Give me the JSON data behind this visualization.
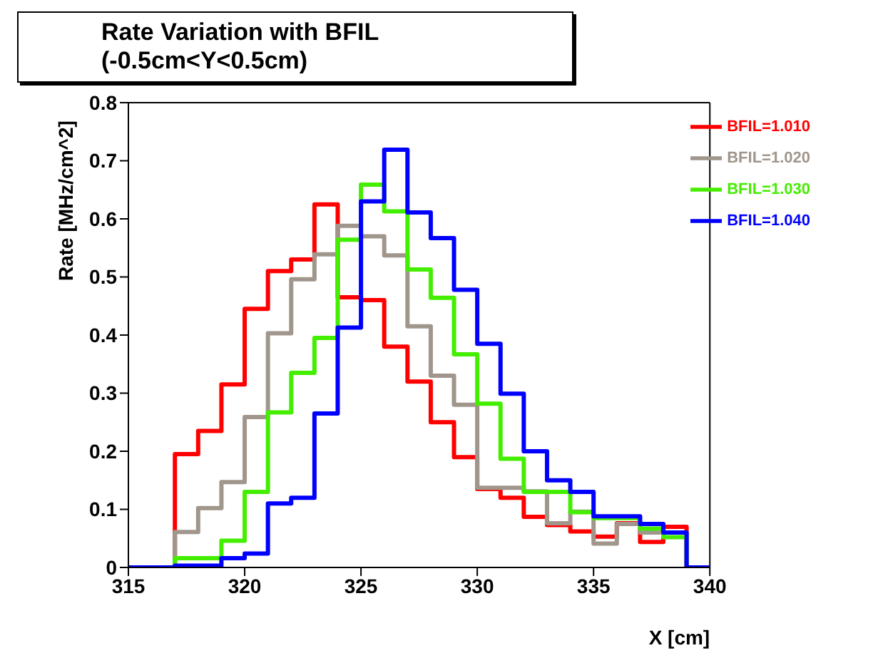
{
  "chart_data": {
    "type": "histogram",
    "title": "Rate Variation with BFIL (-0.5cm<Y<0.5cm)",
    "xlabel": "X [cm]",
    "ylabel": "Rate [MHz/cm^2]",
    "bins": [
      315,
      316,
      317,
      318,
      319,
      320,
      321,
      322,
      323,
      324,
      325,
      326,
      327,
      328,
      329,
      330,
      331,
      332,
      333,
      334,
      335,
      336,
      337,
      338,
      339,
      340
    ],
    "series": [
      {
        "name": "BFIL=1.010",
        "color": "#ff0000",
        "values": [
          0,
          0,
          0.195,
          0.235,
          0.315,
          0.445,
          0.51,
          0.53,
          0.625,
          0.465,
          0.46,
          0.38,
          0.32,
          0.25,
          0.19,
          0.135,
          0.12,
          0.087,
          0.073,
          0.062,
          0.053,
          0.076,
          0.044,
          0.07,
          0
        ]
      },
      {
        "name": "BFIL=1.020",
        "color": "#a0968c",
        "values": [
          0,
          0,
          0.061,
          0.102,
          0.147,
          0.259,
          0.403,
          0.496,
          0.539,
          0.588,
          0.57,
          0.537,
          0.415,
          0.33,
          0.28,
          0.137,
          0.137,
          0.131,
          0.076,
          0.096,
          0.041,
          0.075,
          0.06,
          0.06,
          0
        ]
      },
      {
        "name": "BFIL=1.030",
        "color": "#44ee00",
        "values": [
          0,
          0,
          0.016,
          0.016,
          0.046,
          0.13,
          0.267,
          0.335,
          0.395,
          0.564,
          0.659,
          0.613,
          0.513,
          0.464,
          0.367,
          0.282,
          0.187,
          0.13,
          0.13,
          0.095,
          0.085,
          0.085,
          0.067,
          0.052,
          0
        ]
      },
      {
        "name": "BFIL=1.040",
        "color": "#0000ff",
        "values": [
          0,
          0,
          0.003,
          0.003,
          0.016,
          0.024,
          0.11,
          0.12,
          0.265,
          0.413,
          0.63,
          0.719,
          0.611,
          0.567,
          0.478,
          0.385,
          0.299,
          0.2,
          0.15,
          0.13,
          0.088,
          0.088,
          0.075,
          0.06,
          0
        ]
      }
    ],
    "xlim": [
      315,
      340
    ],
    "xticks": [
      315,
      320,
      325,
      330,
      335,
      340
    ],
    "ylim": [
      0,
      0.8
    ],
    "yticks": [
      0,
      0.1,
      0.2,
      0.3,
      0.4,
      0.5,
      0.6,
      0.7,
      0.8
    ],
    "grid": false,
    "legend": "top right"
  }
}
